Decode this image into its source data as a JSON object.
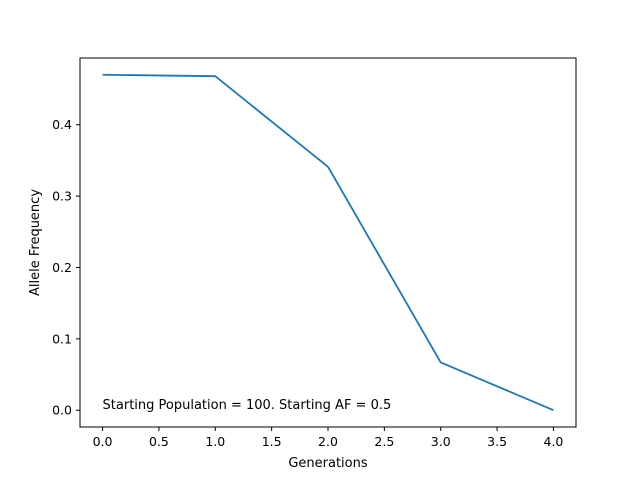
{
  "chart_data": {
    "type": "line",
    "title": "",
    "xlabel": "Generations",
    "ylabel": "Allele Frequency",
    "xlim": [
      -0.2,
      4.2
    ],
    "ylim": [
      -0.0235,
      0.4935
    ],
    "xticks": [
      0.0,
      0.5,
      1.0,
      1.5,
      2.0,
      2.5,
      3.0,
      3.5,
      4.0
    ],
    "xtick_labels": [
      "0.0",
      "0.5",
      "1.0",
      "1.5",
      "2.0",
      "2.5",
      "3.0",
      "3.5",
      "4.0"
    ],
    "yticks": [
      0.0,
      0.1,
      0.2,
      0.3,
      0.4
    ],
    "ytick_labels": [
      "0.0",
      "0.1",
      "0.2",
      "0.3",
      "0.4"
    ],
    "grid": false,
    "series": [
      {
        "color": "#1f77b4",
        "x": [
          0,
          1,
          2,
          3,
          4
        ],
        "y": [
          0.47,
          0.468,
          0.341,
          0.067,
          0.0
        ]
      }
    ],
    "annotation": "Starting Population = 100. Starting AF = 0.5"
  }
}
